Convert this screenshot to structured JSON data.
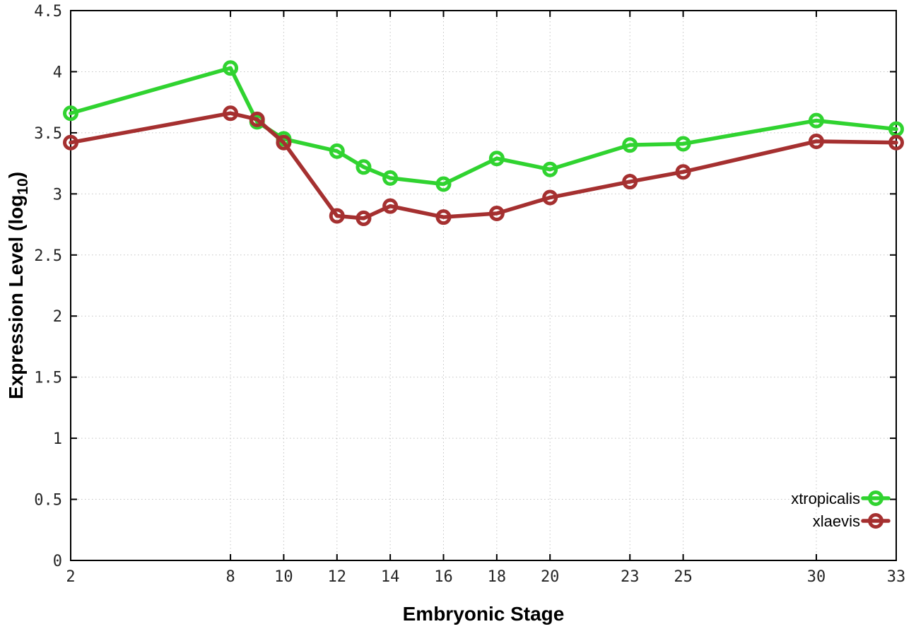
{
  "page": {
    "background": "#ffffff"
  },
  "chart_data": {
    "type": "line",
    "title": "",
    "xlabel": "Embryonic Stage",
    "ylabel": "Expression Level (log10)",
    "ylabel_parts": {
      "pre": "Expression Level (log",
      "sub": "10",
      "post": ")"
    },
    "x": [
      2,
      8,
      9,
      10,
      12,
      13,
      14,
      16,
      18,
      20,
      23,
      25,
      30,
      33
    ],
    "series": [
      {
        "name": "xtropicalis",
        "color": "#30d330",
        "marker": "open-circle",
        "values": [
          3.66,
          4.03,
          3.59,
          3.45,
          3.35,
          3.22,
          3.13,
          3.08,
          3.29,
          3.2,
          3.4,
          3.41,
          3.6,
          3.53
        ]
      },
      {
        "name": "xlaevis",
        "color": "#a53030",
        "marker": "open-circle",
        "values": [
          3.42,
          3.66,
          3.61,
          3.42,
          2.82,
          2.8,
          2.9,
          2.81,
          2.84,
          2.97,
          3.1,
          3.18,
          3.43,
          3.42
        ]
      }
    ],
    "xlim": [
      2,
      33
    ],
    "ylim": [
      0,
      4.5
    ],
    "xticks": [
      2,
      8,
      10,
      12,
      14,
      16,
      18,
      20,
      23,
      25,
      30,
      33
    ],
    "xtick_labels": [
      "2",
      "8",
      "10",
      "12",
      "14",
      "16",
      "18",
      "20",
      "23",
      "25",
      "30",
      "33"
    ],
    "yticks": [
      0,
      0.5,
      1,
      1.5,
      2,
      2.5,
      3,
      3.5,
      4,
      4.5
    ],
    "ytick_labels": [
      "0",
      "0.5",
      "1",
      "1.5",
      "2",
      "2.5",
      "3",
      "3.5",
      "4",
      "4.5"
    ],
    "grid": true,
    "grid_style": "dotted",
    "grid_color": "#c4c4c4",
    "border_color": "#000000",
    "legend_position": "inside-right-bottom"
  }
}
